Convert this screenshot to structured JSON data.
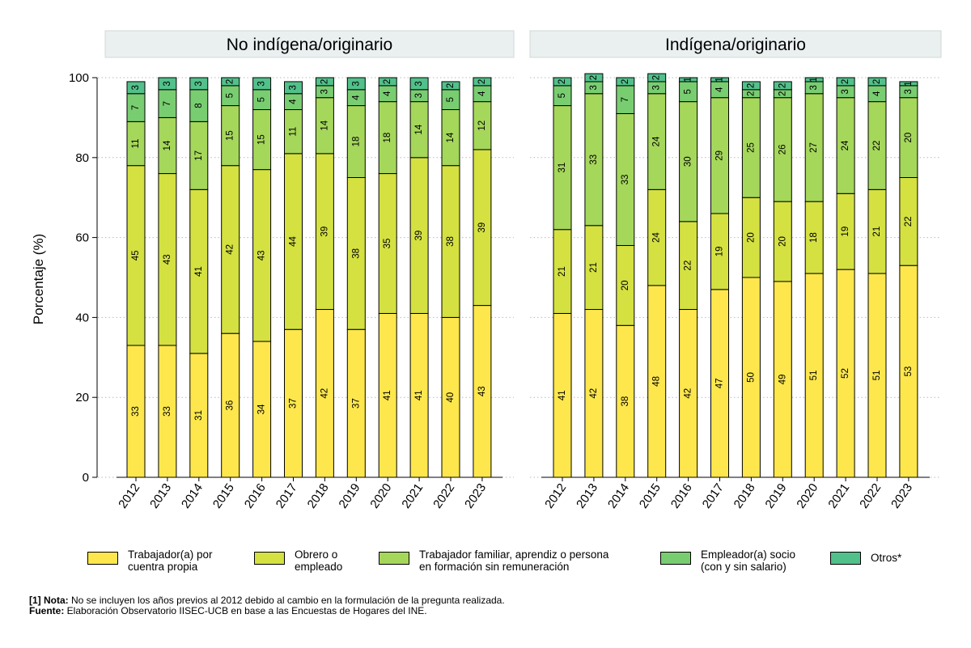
{
  "chart_data": {
    "type": "bar",
    "stacked": true,
    "ylabel": "Porcentaje (%)",
    "ylim": [
      0,
      100
    ],
    "yticks": [
      0,
      20,
      40,
      60,
      80,
      100
    ],
    "grid": "dotted horizontal",
    "categories": [
      "2012",
      "2013",
      "2014",
      "2015",
      "2016",
      "2017",
      "2018",
      "2019",
      "2020",
      "2021",
      "2022",
      "2023"
    ],
    "series_colors": [
      "#fde74c",
      "#d4e141",
      "#a5d75b",
      "#79cd71",
      "#52c08a"
    ],
    "panels": [
      {
        "title": "No indígena/originario",
        "series": [
          {
            "name": "Trabajador(a) por cuentra propia",
            "values": [
              33,
              33,
              31,
              36,
              34,
              37,
              42,
              37,
              41,
              41,
              40,
              43
            ]
          },
          {
            "name": "Obrero o empleado",
            "values": [
              45,
              43,
              41,
              42,
              43,
              44,
              39,
              38,
              35,
              39,
              38,
              39
            ]
          },
          {
            "name": "Trabajador familiar, aprendiz o persona en formación sin remuneración",
            "values": [
              11,
              14,
              17,
              15,
              15,
              11,
              14,
              18,
              18,
              14,
              14,
              12
            ]
          },
          {
            "name": "Empleador(a) socio (con y sin salario)",
            "values": [
              7,
              7,
              8,
              5,
              5,
              4,
              3,
              4,
              4,
              3,
              5,
              4
            ]
          },
          {
            "name": "Otros*",
            "values": [
              3,
              3,
              3,
              2,
              3,
              3,
              2,
              3,
              2,
              3,
              2,
              2
            ]
          }
        ]
      },
      {
        "title": "Indígena/originario",
        "series": [
          {
            "name": "Trabajador(a) por cuentra propia",
            "values": [
              41,
              42,
              38,
              48,
              42,
              47,
              50,
              49,
              51,
              52,
              51,
              53
            ]
          },
          {
            "name": "Obrero o empleado",
            "values": [
              21,
              21,
              20,
              24,
              22,
              19,
              20,
              20,
              18,
              19,
              21,
              22
            ]
          },
          {
            "name": "Trabajador familiar, aprendiz o persona en formación sin remuneración",
            "values": [
              31,
              33,
              33,
              24,
              30,
              29,
              25,
              26,
              27,
              24,
              22,
              20
            ]
          },
          {
            "name": "Empleador(a) socio (con y sin salario)",
            "values": [
              5,
              3,
              7,
              3,
              5,
              4,
              2,
              2,
              3,
              3,
              4,
              3
            ]
          },
          {
            "name": "Otros*",
            "values": [
              2,
              2,
              2,
              2,
              1,
              1,
              2,
              2,
              1,
              2,
              2,
              1
            ]
          }
        ]
      }
    ]
  },
  "legend": [
    {
      "label": "Trabajador(a) por\ncuentra propia",
      "color": "#fde74c"
    },
    {
      "label": "Obrero o\nempleado",
      "color": "#d4e141"
    },
    {
      "label": "Trabajador familiar, aprendiz o persona\nen formación sin remuneración",
      "color": "#a5d75b"
    },
    {
      "label": "Empleador(a) socio\n(con y sin salario)",
      "color": "#79cd71"
    },
    {
      "label": "Otros*",
      "color": "#52c08a"
    }
  ],
  "notes": {
    "note_label": "[1] Nota:",
    "note_text": " No se incluyen los años previos al 2012 debido al cambio en la formulación de la pregunta realizada.",
    "source_label": "Fuente:",
    "source_text": " Elaboración Observatorio IISEC-UCB en base a las Encuestas de Hogares del INE."
  }
}
